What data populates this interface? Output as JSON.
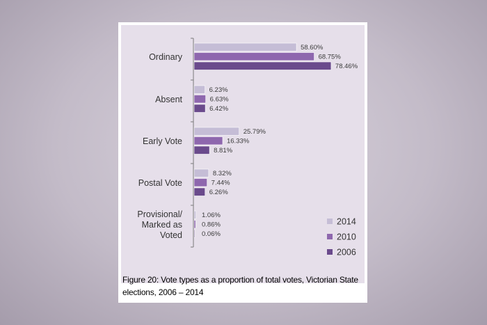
{
  "chart_data": {
    "type": "bar",
    "orientation": "horizontal",
    "categories": [
      "Ordinary",
      "Absent",
      "Early Vote",
      "Postal Vote",
      "Provisional/ Marked as Voted"
    ],
    "category_lines": [
      [
        "Ordinary"
      ],
      [
        "Absent"
      ],
      [
        "Early Vote"
      ],
      [
        "Postal Vote"
      ],
      [
        "Provisional/",
        "Marked as",
        "Voted"
      ]
    ],
    "series": [
      {
        "name": "2014",
        "values": [
          58.6,
          6.23,
          25.79,
          8.32,
          1.06
        ],
        "labels": [
          "58.60%",
          "6.23%",
          "25.79%",
          "8.32%",
          "1.06%"
        ],
        "color": "#c5bdd6"
      },
      {
        "name": "2010",
        "values": [
          68.75,
          6.63,
          16.33,
          7.44,
          0.86
        ],
        "labels": [
          "68.75%",
          "6.63%",
          "16.33%",
          "7.44%",
          "0.86%"
        ],
        "color": "#8e67ae"
      },
      {
        "name": "2006",
        "values": [
          78.46,
          6.42,
          8.81,
          6.26,
          0.06
        ],
        "labels": [
          "78.46%",
          "6.42%",
          "8.81%",
          "6.26%",
          "0.06%"
        ],
        "color": "#6a4a8c"
      }
    ],
    "xlim": [
      0,
      100
    ],
    "legend_position": "bottom-right",
    "grid": false
  },
  "caption": "Figure 20: Vote types as a proportion of total votes, Victorian State elections, 2006 – 2014"
}
